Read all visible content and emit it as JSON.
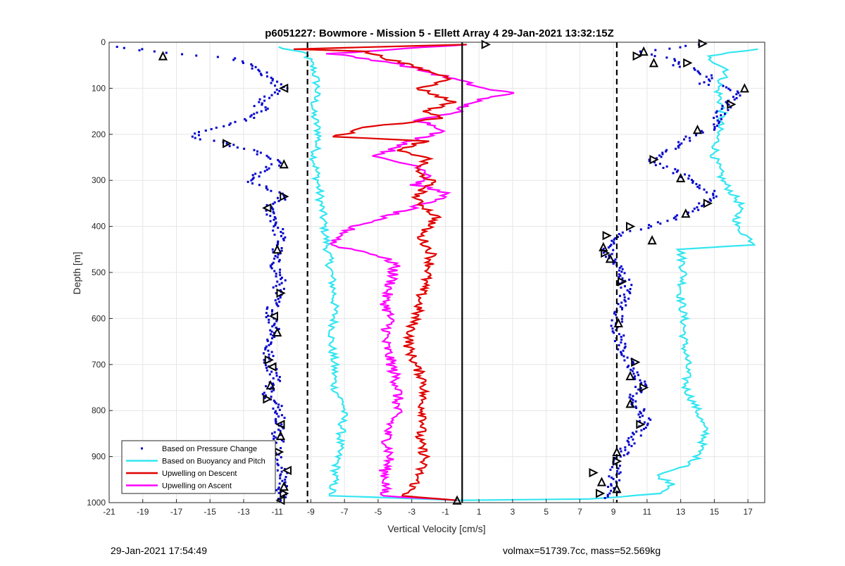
{
  "footer": {
    "timestamp": "29-Jan-2021 17:54:49",
    "vessel_info": "volmax=51739.7cc, mass=52.569kg"
  },
  "chart_data": {
    "type": "line",
    "title": "p6051227: Bowmore - Mission 5 - Ellett Array 4 29-Jan-2021 13:32:15Z",
    "xlabel": "Vertical Velocity [cm/s]",
    "ylabel": "Depth [m]",
    "xlim": [
      -21,
      18
    ],
    "ylim": [
      0,
      1000
    ],
    "y_reversed": true,
    "grid": true,
    "xticks": [
      -21,
      -19,
      -17,
      -15,
      -13,
      -11,
      -9,
      -7,
      -5,
      -3,
      -1,
      1,
      3,
      5,
      7,
      9,
      11,
      13,
      15,
      17
    ],
    "yticks": [
      0,
      100,
      200,
      300,
      400,
      500,
      600,
      700,
      800,
      900,
      1000
    ],
    "legend_position": "bottom-left",
    "colors": {
      "pressure": "#0000cc",
      "buoyancy": "#33e6f2",
      "descent": "#e00000",
      "ascent": "#ff00ff",
      "reference": "#000000"
    },
    "series": [
      {
        "name": "Based on Pressure Change",
        "style": "points",
        "color": "#0000cc",
        "descent": [
          [
            -20.8,
            10
          ],
          [
            -19.3,
            15
          ],
          [
            -18.5,
            20
          ],
          [
            -13.8,
            35
          ],
          [
            -12.8,
            45
          ],
          [
            -12.0,
            60
          ],
          [
            -11.5,
            80
          ],
          [
            -10.6,
            100
          ],
          [
            -12.2,
            130
          ],
          [
            -11.8,
            150
          ],
          [
            -13.0,
            170
          ],
          [
            -15.5,
            195
          ],
          [
            -16.2,
            205
          ],
          [
            -14.0,
            220
          ],
          [
            -12.2,
            240
          ],
          [
            -11.5,
            250
          ],
          [
            -11.0,
            265
          ],
          [
            -12.0,
            280
          ],
          [
            -12.7,
            300
          ],
          [
            -12.2,
            310
          ],
          [
            -11.5,
            320
          ],
          [
            -10.6,
            335
          ],
          [
            -11.0,
            345
          ],
          [
            -11.6,
            360
          ],
          [
            -11.2,
            380
          ],
          [
            -11.0,
            400
          ],
          [
            -10.8,
            430
          ],
          [
            -11.0,
            450
          ],
          [
            -11.2,
            470
          ],
          [
            -11.0,
            500
          ],
          [
            -10.8,
            520
          ],
          [
            -11.0,
            545
          ],
          [
            -11.2,
            570
          ],
          [
            -11.4,
            600
          ],
          [
            -11.0,
            620
          ],
          [
            -11.3,
            640
          ],
          [
            -11.6,
            670
          ],
          [
            -11.5,
            690
          ],
          [
            -11.3,
            710
          ],
          [
            -11.0,
            730
          ],
          [
            -11.4,
            750
          ],
          [
            -11.6,
            770
          ],
          [
            -11.0,
            790
          ],
          [
            -10.7,
            810
          ],
          [
            -10.8,
            830
          ],
          [
            -11.0,
            850
          ],
          [
            -10.9,
            870
          ],
          [
            -11.2,
            890
          ],
          [
            -11.0,
            910
          ],
          [
            -10.8,
            930
          ],
          [
            -10.6,
            950
          ],
          [
            -10.7,
            970
          ],
          [
            -10.8,
            985
          ],
          [
            -10.8,
            995
          ]
        ],
        "ascent": [
          [
            14.3,
            5
          ],
          [
            10.5,
            20
          ],
          [
            11.5,
            30
          ],
          [
            13.0,
            40
          ],
          [
            12.5,
            50
          ],
          [
            14.0,
            60
          ],
          [
            14.8,
            75
          ],
          [
            14.2,
            90
          ],
          [
            15.8,
            95
          ],
          [
            16.5,
            110
          ],
          [
            16.0,
            130
          ],
          [
            15.5,
            150
          ],
          [
            15.0,
            170
          ],
          [
            14.8,
            190
          ],
          [
            13.6,
            205
          ],
          [
            13.0,
            220
          ],
          [
            12.0,
            240
          ],
          [
            11.2,
            255
          ],
          [
            12.0,
            270
          ],
          [
            13.2,
            290
          ],
          [
            13.8,
            305
          ],
          [
            14.6,
            320
          ],
          [
            15.0,
            335
          ],
          [
            14.4,
            350
          ],
          [
            13.5,
            370
          ],
          [
            12.5,
            385
          ],
          [
            11.2,
            400
          ],
          [
            10.0,
            410
          ],
          [
            9.2,
            420
          ],
          [
            8.8,
            440
          ],
          [
            8.6,
            460
          ],
          [
            9.0,
            475
          ],
          [
            9.3,
            490
          ],
          [
            9.6,
            510
          ],
          [
            9.8,
            530
          ],
          [
            9.6,
            560
          ],
          [
            9.4,
            580
          ],
          [
            9.2,
            610
          ],
          [
            9.3,
            640
          ],
          [
            9.6,
            670
          ],
          [
            9.9,
            700
          ],
          [
            10.2,
            720
          ],
          [
            10.8,
            740
          ],
          [
            10.4,
            760
          ],
          [
            10.0,
            780
          ],
          [
            10.6,
            800
          ],
          [
            10.9,
            820
          ],
          [
            10.6,
            840
          ],
          [
            10.2,
            860
          ],
          [
            9.8,
            880
          ],
          [
            9.4,
            900
          ],
          [
            9.2,
            920
          ],
          [
            9.1,
            940
          ],
          [
            9.0,
            960
          ],
          [
            9.0,
            980
          ],
          [
            8.5,
            990
          ]
        ]
      },
      {
        "name": "Based on Buoyancy and Pitch",
        "style": "line",
        "color": "#33e6f2",
        "descent": [
          [
            -11.0,
            10
          ],
          [
            -9.3,
            25
          ],
          [
            -8.8,
            60
          ],
          [
            -8.6,
            100
          ],
          [
            -8.9,
            150
          ],
          [
            -8.5,
            200
          ],
          [
            -8.8,
            250
          ],
          [
            -8.6,
            300
          ],
          [
            -8.4,
            350
          ],
          [
            -8.2,
            400
          ],
          [
            -8.0,
            450
          ],
          [
            -7.8,
            500
          ],
          [
            -7.6,
            550
          ],
          [
            -7.6,
            600
          ],
          [
            -7.8,
            650
          ],
          [
            -7.6,
            700
          ],
          [
            -7.6,
            750
          ],
          [
            -7.0,
            790
          ],
          [
            -7.2,
            850
          ],
          [
            -7.4,
            900
          ],
          [
            -7.6,
            950
          ],
          [
            -7.8,
            985
          ],
          [
            -0.3,
            995
          ]
        ],
        "ascent": [
          [
            17.5,
            15
          ],
          [
            14.5,
            30
          ],
          [
            15.8,
            60
          ],
          [
            15.2,
            100
          ],
          [
            15.5,
            150
          ],
          [
            15.2,
            200
          ],
          [
            15.0,
            250
          ],
          [
            15.5,
            300
          ],
          [
            16.5,
            350
          ],
          [
            16.3,
            400
          ],
          [
            17.5,
            440
          ],
          [
            13.0,
            450
          ],
          [
            13.2,
            500
          ],
          [
            13.0,
            550
          ],
          [
            13.2,
            600
          ],
          [
            13.2,
            650
          ],
          [
            13.4,
            700
          ],
          [
            13.3,
            750
          ],
          [
            14.0,
            800
          ],
          [
            14.5,
            850
          ],
          [
            14.0,
            900
          ],
          [
            13.5,
            920
          ],
          [
            11.5,
            940
          ],
          [
            12.6,
            960
          ],
          [
            12.0,
            980
          ],
          [
            7.5,
            992
          ],
          [
            -0.3,
            995
          ]
        ]
      },
      {
        "name": "Upwelling on Descent",
        "style": "line",
        "color": "#e00000",
        "values": [
          [
            0.3,
            5
          ],
          [
            -9.8,
            15
          ],
          [
            -5.8,
            20
          ],
          [
            -0.5,
            80
          ],
          [
            -2.6,
            100
          ],
          [
            -0.5,
            130
          ],
          [
            -2.2,
            150
          ],
          [
            -1.2,
            165
          ],
          [
            -5.7,
            185
          ],
          [
            -7.5,
            205
          ],
          [
            -2.2,
            215
          ],
          [
            -4.0,
            235
          ],
          [
            -2.0,
            250
          ],
          [
            -2.8,
            280
          ],
          [
            -1.8,
            300
          ],
          [
            -2.8,
            340
          ],
          [
            -1.5,
            380
          ],
          [
            -2.5,
            420
          ],
          [
            -1.8,
            460
          ],
          [
            -2.0,
            500
          ],
          [
            -2.4,
            540
          ],
          [
            -2.6,
            580
          ],
          [
            -3.0,
            620
          ],
          [
            -3.2,
            660
          ],
          [
            -2.8,
            700
          ],
          [
            -2.2,
            740
          ],
          [
            -2.4,
            780
          ],
          [
            -2.2,
            820
          ],
          [
            -2.6,
            860
          ],
          [
            -2.2,
            900
          ],
          [
            -2.5,
            930
          ],
          [
            -2.8,
            960
          ],
          [
            -3.4,
            985
          ],
          [
            -0.3,
            995
          ]
        ]
      },
      {
        "name": "Upwelling on Ascent",
        "style": "line",
        "color": "#ff00ff",
        "values": [
          [
            0.3,
            5
          ],
          [
            -7.8,
            25
          ],
          [
            -4.0,
            45
          ],
          [
            -1.5,
            70
          ],
          [
            0.0,
            85
          ],
          [
            1.2,
            100
          ],
          [
            3.0,
            110
          ],
          [
            0.5,
            130
          ],
          [
            -0.3,
            150
          ],
          [
            -2.5,
            170
          ],
          [
            -1.0,
            190
          ],
          [
            -3.0,
            215
          ],
          [
            -5.2,
            250
          ],
          [
            -2.5,
            270
          ],
          [
            -1.8,
            290
          ],
          [
            -2.8,
            310
          ],
          [
            -0.7,
            330
          ],
          [
            -3.0,
            360
          ],
          [
            -6.5,
            400
          ],
          [
            -7.8,
            440
          ],
          [
            -5.2,
            460
          ],
          [
            -4.0,
            480
          ],
          [
            -4.2,
            520
          ],
          [
            -4.6,
            560
          ],
          [
            -4.3,
            600
          ],
          [
            -4.6,
            650
          ],
          [
            -4.2,
            700
          ],
          [
            -3.8,
            750
          ],
          [
            -3.9,
            800
          ],
          [
            -4.5,
            850
          ],
          [
            -4.3,
            900
          ],
          [
            -4.6,
            930
          ],
          [
            -4.5,
            960
          ],
          [
            -4.8,
            985
          ],
          [
            -0.3,
            995
          ]
        ]
      }
    ],
    "reference_lines": [
      {
        "x": -9.2,
        "style": "dashed"
      },
      {
        "x": 9.2,
        "style": "dashed"
      },
      {
        "x": 0.0,
        "style": "solid"
      }
    ],
    "markers": {
      "descent": [
        [
          -17.8,
          30
        ],
        [
          -14.0,
          220
        ],
        [
          -10.6,
          100
        ],
        [
          -10.6,
          265
        ],
        [
          -10.6,
          335
        ],
        [
          -11.6,
          360
        ],
        [
          -11.0,
          450
        ],
        [
          -10.8,
          545
        ],
        [
          -11.2,
          595
        ],
        [
          -11.0,
          630
        ],
        [
          -11.5,
          690
        ],
        [
          -11.3,
          705
        ],
        [
          -11.4,
          745
        ],
        [
          -11.6,
          775
        ],
        [
          -10.8,
          830
        ],
        [
          -10.8,
          855
        ],
        [
          -10.9,
          890
        ],
        [
          -10.4,
          930
        ],
        [
          -10.6,
          965
        ],
        [
          -10.6,
          980
        ],
        [
          -10.8,
          995
        ]
      ],
      "ascent": [
        [
          14.3,
          3
        ],
        [
          10.8,
          20
        ],
        [
          10.4,
          30
        ],
        [
          11.4,
          45
        ],
        [
          13.4,
          45
        ],
        [
          16.8,
          100
        ],
        [
          16.0,
          135
        ],
        [
          14.0,
          190
        ],
        [
          11.4,
          255
        ],
        [
          13.0,
          295
        ],
        [
          14.6,
          350
        ],
        [
          13.3,
          372
        ],
        [
          10.0,
          400
        ],
        [
          11.3,
          430
        ],
        [
          8.6,
          420
        ],
        [
          8.4,
          445
        ],
        [
          8.5,
          458
        ],
        [
          8.8,
          470
        ],
        [
          9.5,
          520
        ],
        [
          9.3,
          610
        ],
        [
          10.3,
          695
        ],
        [
          10.0,
          725
        ],
        [
          10.8,
          750
        ],
        [
          10.0,
          785
        ],
        [
          10.6,
          830
        ],
        [
          9.2,
          890
        ],
        [
          9.2,
          910
        ],
        [
          9.2,
          970
        ],
        [
          7.8,
          935
        ],
        [
          8.3,
          955
        ],
        [
          8.2,
          980
        ],
        [
          -0.3,
          995
        ],
        [
          1.4,
          5
        ]
      ]
    }
  }
}
